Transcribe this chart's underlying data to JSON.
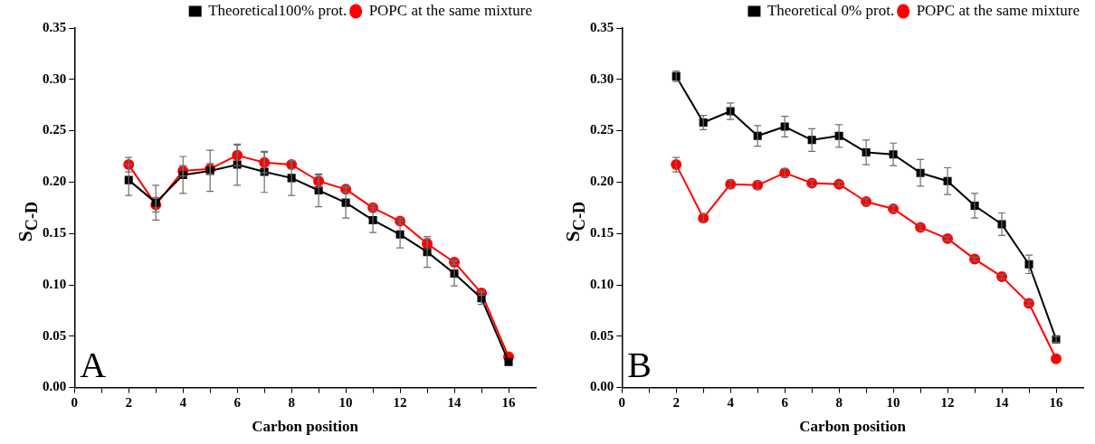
{
  "chart_data": [
    {
      "type": "line",
      "xlabel": "Carbon position",
      "ylabel": "S$_{C-D}$",
      "annotations": [
        "A"
      ],
      "legend": "top right",
      "grid": false,
      "line_style": "solid",
      "xlim": [
        0,
        17
      ],
      "xticks": [
        0,
        {
          "value": 1,
          "label": null
        },
        2,
        {
          "value": 3,
          "label": null
        },
        4,
        {
          "value": 5,
          "label": null
        },
        6,
        {
          "value": 7,
          "label": null
        },
        8,
        {
          "value": 9,
          "label": null
        },
        10,
        {
          "value": 11,
          "label": null
        },
        12,
        {
          "value": 13,
          "label": null
        },
        14,
        {
          "value": 15,
          "label": null
        },
        16
      ],
      "ylim": [
        0,
        0.35
      ],
      "yticks": [
        {
          "value": 0,
          "label": "0.00"
        },
        {
          "value": 0.05,
          "label": "0.05"
        },
        {
          "value": 0.1,
          "label": "0.10"
        },
        {
          "value": 0.15,
          "label": "0.15"
        },
        {
          "value": 0.2,
          "label": "0.20"
        },
        {
          "value": 0.25,
          "label": "0.25"
        },
        {
          "value": 0.3,
          "label": "0.30"
        },
        {
          "value": 0.35,
          "label": "0.35"
        }
      ],
      "x": [
        2,
        3,
        4,
        5,
        6,
        7,
        8,
        9,
        10,
        11,
        12,
        13,
        14,
        15,
        16
      ],
      "series": [
        {
          "name": "Theoretical100% prot.",
          "color": "#000000",
          "marker": "square",
          "values": [
            0.202,
            0.18,
            0.207,
            0.211,
            0.217,
            0.21,
            0.204,
            0.192,
            0.18,
            0.163,
            0.149,
            0.132,
            0.111,
            0.087,
            0.025
          ],
          "errors": [
            0.015,
            0.017,
            0.018,
            0.02,
            0.02,
            0.02,
            0.017,
            0.016,
            0.015,
            0.012,
            0.013,
            0.015,
            0.012,
            0.006,
            null
          ]
        },
        {
          "name": "POPC at the same mixture",
          "color": "#ff0000",
          "marker": "circle",
          "values": [
            0.217,
            0.178,
            0.211,
            0.213,
            0.226,
            0.219,
            0.217,
            0.201,
            0.193,
            0.175,
            0.162,
            0.14,
            0.122,
            0.092,
            0.03
          ],
          "errors": [
            0.007,
            0.007,
            0.005,
            0.005,
            0.01,
            0.01,
            0.004,
            0.006,
            0.003,
            0.003,
            0.003,
            0.005,
            0.002,
            0.002,
            null
          ]
        }
      ]
    },
    {
      "type": "line",
      "xlabel": "Carbon position",
      "ylabel": "S$_{C-D}$",
      "annotations": [
        "B"
      ],
      "legend": "top right",
      "grid": false,
      "line_style": "solid",
      "xlim": [
        0,
        17
      ],
      "xticks": [
        0,
        {
          "value": 1,
          "label": null
        },
        2,
        {
          "value": 3,
          "label": null
        },
        4,
        {
          "value": 5,
          "label": null
        },
        6,
        {
          "value": 7,
          "label": null
        },
        8,
        {
          "value": 9,
          "label": null
        },
        10,
        {
          "value": 11,
          "label": null
        },
        12,
        {
          "value": 13,
          "label": null
        },
        14,
        {
          "value": 15,
          "label": null
        },
        16
      ],
      "ylim": [
        0,
        0.35
      ],
      "yticks": [
        {
          "value": 0,
          "label": "0.00"
        },
        {
          "value": 0.05,
          "label": "0.05"
        },
        {
          "value": 0.1,
          "label": "0.10"
        },
        {
          "value": 0.15,
          "label": "0.15"
        },
        {
          "value": 0.2,
          "label": "0.20"
        },
        {
          "value": 0.25,
          "label": "0.25"
        },
        {
          "value": 0.3,
          "label": "0.30"
        },
        {
          "value": 0.35,
          "label": "0.35"
        }
      ],
      "x": [
        2,
        3,
        4,
        5,
        6,
        7,
        8,
        9,
        10,
        11,
        12,
        13,
        14,
        15,
        16
      ],
      "series": [
        {
          "name": "Theoretical 0% prot.",
          "color": "#000000",
          "marker": "square",
          "values": [
            0.303,
            0.258,
            0.269,
            0.245,
            0.254,
            0.241,
            0.245,
            0.229,
            0.227,
            0.209,
            0.201,
            0.177,
            0.159,
            0.12,
            0.047
          ],
          "errors": [
            0.005,
            0.007,
            0.008,
            0.01,
            0.01,
            0.011,
            0.011,
            0.012,
            0.011,
            0.013,
            0.013,
            0.012,
            0.011,
            0.009,
            0.003
          ]
        },
        {
          "name": "POPC at the same mixture",
          "color": "#ff0000",
          "marker": "circle",
          "values": [
            0.217,
            0.165,
            0.198,
            0.197,
            0.209,
            0.199,
            0.198,
            0.181,
            0.174,
            0.156,
            0.145,
            0.125,
            0.108,
            0.082,
            0.028
          ],
          "errors": [
            0.007,
            0.004,
            0.004,
            0.004,
            0.004,
            0.003,
            0.002,
            0.003,
            0.003,
            0.003,
            0.002,
            0.002,
            0.002,
            0.002,
            null
          ]
        }
      ]
    }
  ]
}
